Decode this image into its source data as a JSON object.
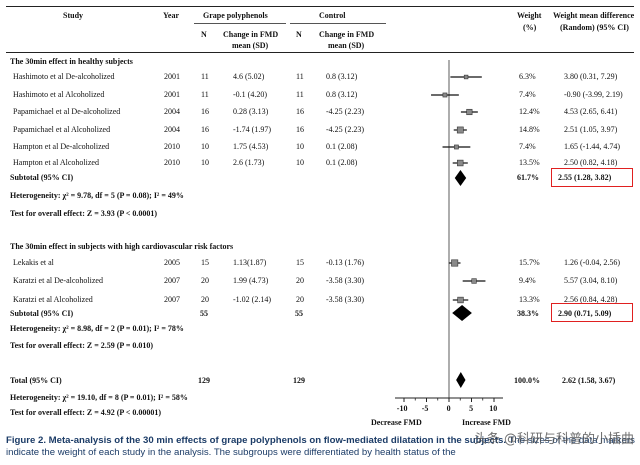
{
  "header": {
    "study": "Study",
    "year": "Year",
    "grape_group": "Grape polyphenols",
    "control_group": "Control",
    "n": "N",
    "change_line1": "Change in FMD",
    "change_line2": "mean (SD)",
    "weight_line1": "Weight",
    "weight_line2": "(%)",
    "wmd_line1": "Weight mean difference",
    "wmd_line2": "(Random) (95% CI)"
  },
  "subgroup1": {
    "title": "The 30min effect in healthy subjects",
    "subtotal_label": "Subtotal (95% CI)",
    "subtotal_weight": "61.7%",
    "subtotal_ci": "2.55 (1.28, 3.82)",
    "heterogeneity": "Heterogeneity: χ² = 9.78, df = 5 (P = 0.08); I² = 49%",
    "overall": "Test for overall effect: Z = 3.93 (P < 0.0001)"
  },
  "subgroup2": {
    "title": "The 30min effect in subjects with high cardiovascular risk factors",
    "subtotal_label": "Subtotal (95% CI)",
    "subtotal_n_treat": "55",
    "subtotal_n_ctrl": "55",
    "subtotal_weight": "38.3%",
    "subtotal_ci": "2.90 (0.71, 5.09)",
    "heterogeneity": "Heterogeneity: χ² = 8.98, df = 2 (P = 0.01); I² = 78%",
    "overall": "Test for overall effect: Z = 2.59 (P = 0.010)"
  },
  "total": {
    "label": "Total (95% CI)",
    "n_treat": "129",
    "n_ctrl": "129",
    "weight": "100.0%",
    "ci": "2.62 (1.58, 3.67)",
    "heterogeneity": "Heterogeneity: χ² = 19.10, df = 8 (P = 0.01); I² = 58%",
    "overall": "Test for overall effect: Z = 4.92 (P < 0.00001)"
  },
  "axis": {
    "ticks": [
      "-10",
      "-5",
      "0",
      "5",
      "10"
    ],
    "label_left": "Decrease FMD",
    "label_right": "Increase FMD"
  },
  "caption": {
    "bold": "Figure 2. Meta-analysis of the 30 min effects of grape polyphenols on flow-mediated dilatation in the subjects.",
    "rest": " The sizes of the data markers indicate the weight of each study in the analysis. The subgroups were differentiated by health status of the"
  },
  "watermark": "头条 @科研与科普的小插曲",
  "chart_data": {
    "type": "forest",
    "xlim": [
      -12,
      12
    ],
    "xticks": [
      -10,
      -5,
      0,
      5,
      10
    ],
    "xlabel_left": "Decrease FMD",
    "xlabel_right": "Increase FMD",
    "studies": [
      {
        "study": "Hashimoto et al De-alcoholized",
        "year": "2001",
        "n_t": "11",
        "mean_t": "4.6 (5.02)",
        "n_c": "11",
        "mean_c": "0.8 (3.12)",
        "weight": "6.3%",
        "ci_text": "3.80 (0.31, 7.29)",
        "est": 3.8,
        "lo": 0.31,
        "hi": 7.29,
        "group": 1
      },
      {
        "study": "Hashimoto et al Alcoholized",
        "year": "2001",
        "n_t": "11",
        "mean_t": "-0.1 (4.20)",
        "n_c": "11",
        "mean_c": "0.8 (3.12)",
        "weight": "7.4%",
        "ci_text": "-0.90 (-3.99, 2.19)",
        "est": -0.9,
        "lo": -3.99,
        "hi": 2.19,
        "group": 1
      },
      {
        "study": "Papamichael et al De-alcoholized",
        "year": "2004",
        "n_t": "16",
        "mean_t": "0.28 (3.13)",
        "n_c": "16",
        "mean_c": "-4.25 (2.23)",
        "weight": "12.4%",
        "ci_text": "4.53 (2.65, 6.41)",
        "est": 4.53,
        "lo": 2.65,
        "hi": 6.41,
        "group": 1
      },
      {
        "study": "Papamichael et al Alcoholized",
        "year": "2004",
        "n_t": "16",
        "mean_t": "-1.74 (1.97)",
        "n_c": "16",
        "mean_c": "-4.25 (2.23)",
        "weight": "14.8%",
        "ci_text": "2.51 (1.05, 3.97)",
        "est": 2.51,
        "lo": 1.05,
        "hi": 3.97,
        "group": 1
      },
      {
        "study": "Hampton et al De-alcoholized",
        "year": "2010",
        "n_t": "10",
        "mean_t": "1.75 (4.53)",
        "n_c": "10",
        "mean_c": "0.1 (2.08)",
        "weight": "7.4%",
        "ci_text": "1.65 (-1.44, 4.74)",
        "est": 1.65,
        "lo": -1.44,
        "hi": 4.74,
        "group": 1
      },
      {
        "study": "Hampton et al Alcoholized",
        "year": "2010",
        "n_t": "10",
        "mean_t": "2.6 (1.73)",
        "n_c": "10",
        "mean_c": "0.1 (2.08)",
        "weight": "13.5%",
        "ci_text": "2.50 (0.82, 4.18)",
        "est": 2.5,
        "lo": 0.82,
        "hi": 4.18,
        "group": 1
      },
      {
        "study": "Lekakis et al",
        "year": "2005",
        "n_t": "15",
        "mean_t": "1.13(1.87)",
        "n_c": "15",
        "mean_c": "-0.13 (1.76)",
        "weight": "15.7%",
        "ci_text": "1.26 (-0.04, 2.56)",
        "est": 1.26,
        "lo": -0.04,
        "hi": 2.56,
        "group": 2
      },
      {
        "study": "Karatzi et al De-alcoholized",
        "year": "2007",
        "n_t": "20",
        "mean_t": "1.99 (4.73)",
        "n_c": "20",
        "mean_c": "-3.58 (3.30)",
        "weight": "9.4%",
        "ci_text": "5.57 (3.04, 8.10)",
        "est": 5.57,
        "lo": 3.04,
        "hi": 8.1,
        "group": 2
      },
      {
        "study": "Karatzi et al Alcoholized",
        "year": "2007",
        "n_t": "20",
        "mean_t": "-1.02 (2.14)",
        "n_c": "20",
        "mean_c": "-3.58 (3.30)",
        "weight": "13.3%",
        "ci_text": "2.56 (0.84, 4.28)",
        "est": 2.56,
        "lo": 0.84,
        "hi": 4.28,
        "group": 2
      }
    ],
    "pooled": [
      {
        "name": "Subtotal (95% CI)",
        "group": 1,
        "est": 2.55,
        "lo": 1.28,
        "hi": 3.82
      },
      {
        "name": "Subtotal (95% CI)",
        "group": 2,
        "est": 2.9,
        "lo": 0.71,
        "hi": 5.09
      },
      {
        "name": "Total (95% CI)",
        "group": "all",
        "est": 2.62,
        "lo": 1.58,
        "hi": 3.67
      }
    ]
  }
}
